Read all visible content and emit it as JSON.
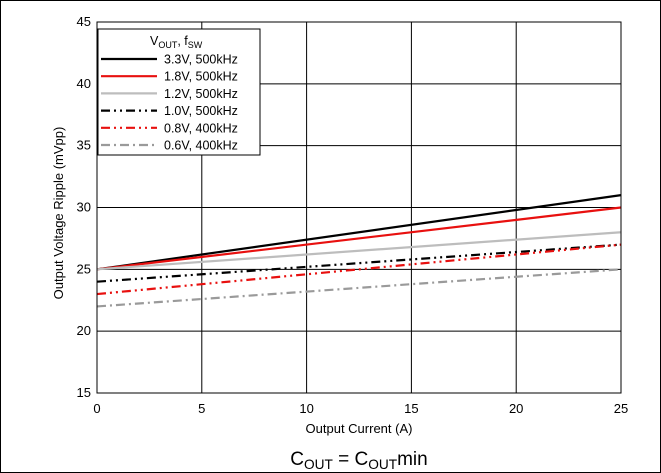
{
  "chart_data": {
    "type": "line",
    "xlabel": "Output Current (A)",
    "ylabel": "Output Voltage Ripple (mVpp)",
    "xlim": [
      0,
      25
    ],
    "ylim": [
      15,
      45
    ],
    "xticks": [
      0,
      5,
      10,
      15,
      20,
      25
    ],
    "yticks": [
      15,
      20,
      25,
      30,
      35,
      40,
      45
    ],
    "grid": true,
    "legend_position": "top-left",
    "legend_title": {
      "main": "V",
      "sub1": "OUT",
      "mid": ", f",
      "sub2": "SW"
    },
    "caption": {
      "a": "C",
      "a_sub": "OUT",
      "eq": " = C",
      "b_sub": "OUT",
      "tail": "min"
    },
    "series": [
      {
        "name": "3.3V, 500kHz",
        "color": "#000000",
        "dash": "solid",
        "x": [
          0,
          25
        ],
        "y": [
          25,
          31
        ]
      },
      {
        "name": "1.8V, 500kHz",
        "color": "#e8100f",
        "dash": "solid",
        "x": [
          0,
          25
        ],
        "y": [
          25,
          30
        ]
      },
      {
        "name": "1.2V, 500kHz",
        "color": "#bdbdbd",
        "dash": "solid",
        "x": [
          0,
          25
        ],
        "y": [
          25,
          28
        ]
      },
      {
        "name": "1.0V, 500kHz",
        "color": "#000000",
        "dash": "dash-dot-dot",
        "x": [
          0,
          25
        ],
        "y": [
          24,
          27
        ]
      },
      {
        "name": "0.8V, 400kHz",
        "color": "#e8100f",
        "dash": "dash-dot-dot",
        "x": [
          0,
          25
        ],
        "y": [
          23,
          27
        ]
      },
      {
        "name": "0.6V, 400kHz",
        "color": "#9a9a9a",
        "dash": "dash-dot",
        "x": [
          0,
          25
        ],
        "y": [
          22,
          25
        ]
      }
    ]
  }
}
